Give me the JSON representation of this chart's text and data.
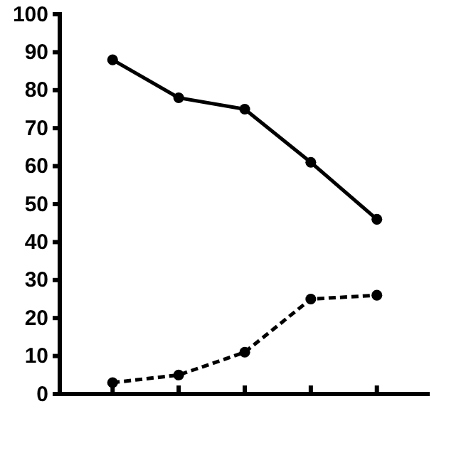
{
  "chart_data": {
    "type": "line",
    "categories": [
      null,
      null,
      null,
      null,
      null
    ],
    "series": [
      {
        "color": "#000000",
        "values": [
          88,
          78,
          75,
          61,
          46
        ],
        "line_style": "solid"
      },
      {
        "color": "#000000",
        "values": [
          3,
          5,
          11,
          25,
          26
        ],
        "line_style": "dashed"
      }
    ],
    "ylim": [
      0,
      100
    ],
    "yticks": [
      0,
      10,
      20,
      30,
      40,
      50,
      60,
      70,
      80,
      90,
      100
    ],
    "marker": "circle",
    "grid": false
  }
}
